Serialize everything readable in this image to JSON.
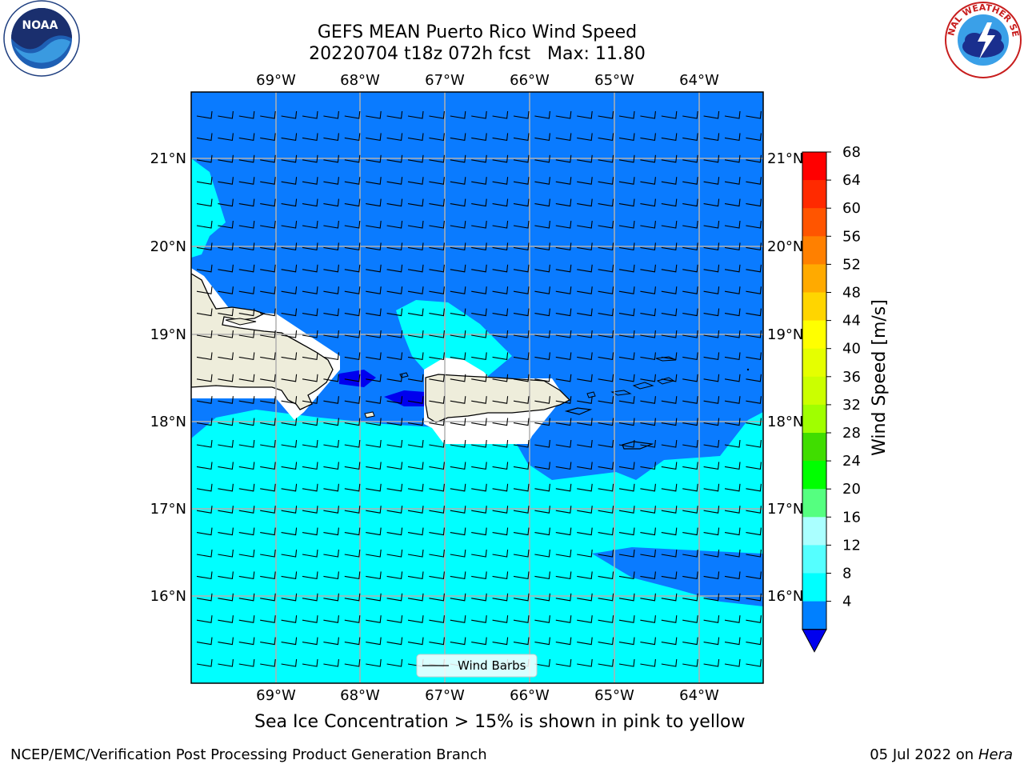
{
  "title_line1": "GEFS MEAN Puerto Rico Wind Speed",
  "title_line2": "20220704 t18z 072h fcst   Max: 11.80",
  "longitude_labels": [
    "69°W",
    "68°W",
    "67°W",
    "66°W",
    "65°W",
    "64°W"
  ],
  "latitude_labels": [
    "21°N",
    "20°N",
    "19°N",
    "18°N",
    "17°N",
    "16°N"
  ],
  "legend_label": "Wind Barbs",
  "colorbar": {
    "label": "Wind Speed [m/s]",
    "ticks": [
      "68",
      "64",
      "60",
      "56",
      "52",
      "48",
      "44",
      "40",
      "36",
      "32",
      "28",
      "24",
      "20",
      "16",
      "12",
      "8",
      "4"
    ],
    "colors": [
      "#ff0000",
      "#ff2a00",
      "#ff5500",
      "#ff8000",
      "#ffaa00",
      "#ffd500",
      "#ffff00",
      "#e5ff00",
      "#cbff00",
      "#a0ff00",
      "#40dd00",
      "#00ff00",
      "#55ff80",
      "#aaffff",
      "#55ffff",
      "#00ffff",
      "#0080ff",
      "#0000ee"
    ]
  },
  "caption": "Sea Ice Concentration > 15% is shown in pink to yellow",
  "footer_left": "NCEP/EMC/Verification Post Processing Product Generation Branch",
  "footer_date": "05 Jul 2022 on",
  "footer_host": "Hera",
  "logos": {
    "left_text": "NOAA",
    "right_text": "NATIONAL WEATHER SERVICE"
  },
  "colors": {
    "ocean_dark": "#0a7bff",
    "ocean_light": "#00ffff",
    "land": "#eeeddb",
    "deep": "#0000ee"
  }
}
